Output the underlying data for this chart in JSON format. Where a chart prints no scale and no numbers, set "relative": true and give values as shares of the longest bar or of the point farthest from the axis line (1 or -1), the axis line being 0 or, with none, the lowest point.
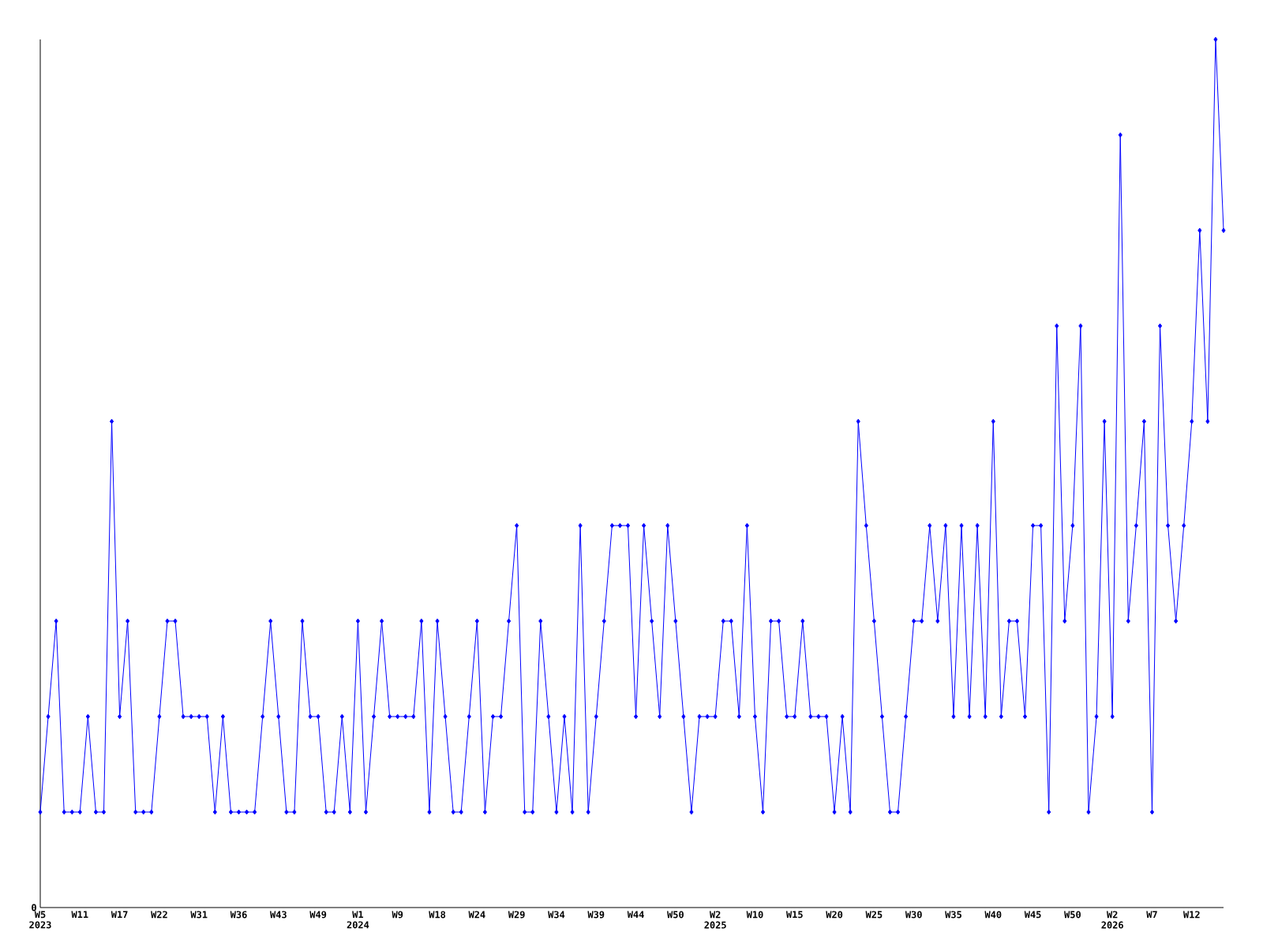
{
  "chart_data": {
    "type": "line",
    "relative": true,
    "color": "#0000ff",
    "marker": "diamond",
    "line_style": "solid",
    "annotations": [
      "0"
    ],
    "categories": [
      "W5 2023",
      null,
      null,
      null,
      null,
      "W11",
      null,
      null,
      null,
      null,
      "W17",
      null,
      null,
      null,
      null,
      "W22",
      null,
      null,
      null,
      null,
      "W31",
      null,
      null,
      null,
      null,
      "W36",
      null,
      null,
      null,
      null,
      "W43",
      null,
      null,
      null,
      null,
      "W49",
      null,
      null,
      null,
      null,
      "W1 2024",
      null,
      null,
      null,
      null,
      "W9",
      null,
      null,
      null,
      null,
      "W18",
      null,
      null,
      null,
      null,
      "W24",
      null,
      null,
      null,
      null,
      "W29",
      null,
      null,
      null,
      null,
      "W34",
      null,
      null,
      null,
      null,
      "W39",
      null,
      null,
      null,
      null,
      "W44",
      null,
      null,
      null,
      null,
      "W50",
      null,
      null,
      null,
      null,
      "W2 2025",
      null,
      null,
      null,
      null,
      "W10",
      null,
      null,
      null,
      null,
      "W15",
      null,
      null,
      null,
      null,
      "W20",
      null,
      null,
      null,
      null,
      "W25",
      null,
      null,
      null,
      null,
      "W30",
      null,
      null,
      null,
      null,
      "W35",
      null,
      null,
      null,
      null,
      "W40",
      null,
      null,
      null,
      null,
      "W45",
      null,
      null,
      null,
      null,
      "W50",
      null,
      null,
      null,
      null,
      "W2 2026",
      null,
      null,
      null,
      null,
      "W7",
      null,
      null,
      null,
      null,
      "W12",
      null,
      null,
      null,
      null
    ],
    "values": [
      0.11,
      0.22,
      0.33,
      0.11,
      0.11,
      0.11,
      0.22,
      0.11,
      0.11,
      0.56,
      0.22,
      0.33,
      0.11,
      0.11,
      0.11,
      0.22,
      0.33,
      0.33,
      0.22,
      0.22,
      0.22,
      0.22,
      0.11,
      0.22,
      0.11,
      0.11,
      0.11,
      0.11,
      0.22,
      0.33,
      0.22,
      0.11,
      0.11,
      0.33,
      0.22,
      0.22,
      0.11,
      0.11,
      0.22,
      0.11,
      0.33,
      0.11,
      0.22,
      0.33,
      0.22,
      0.22,
      0.22,
      0.22,
      0.33,
      0.11,
      0.33,
      0.22,
      0.11,
      0.11,
      0.22,
      0.33,
      0.11,
      0.22,
      0.22,
      0.33,
      0.44,
      0.11,
      0.11,
      0.33,
      0.22,
      0.11,
      0.22,
      0.11,
      0.44,
      0.11,
      0.22,
      0.33,
      0.44,
      0.44,
      0.44,
      0.22,
      0.44,
      0.33,
      0.22,
      0.44,
      0.33,
      0.22,
      0.11,
      0.22,
      0.22,
      0.22,
      0.33,
      0.33,
      0.22,
      0.44,
      0.22,
      0.11,
      0.33,
      0.33,
      0.22,
      0.22,
      0.33,
      0.22,
      0.22,
      0.22,
      0.11,
      0.22,
      0.11,
      0.56,
      0.44,
      0.33,
      0.22,
      0.11,
      0.11,
      0.22,
      0.33,
      0.33,
      0.44,
      0.33,
      0.44,
      0.22,
      0.44,
      0.22,
      0.44,
      0.22,
      0.56,
      0.22,
      0.33,
      0.33,
      0.22,
      0.44,
      0.44,
      0.11,
      0.67,
      0.33,
      0.44,
      0.67,
      0.11,
      0.22,
      0.56,
      0.22,
      0.89,
      0.33,
      0.44,
      0.56,
      0.11,
      0.67,
      0.44,
      0.33,
      0.44,
      0.56,
      0.78,
      0.56,
      1,
      0.78
    ]
  }
}
